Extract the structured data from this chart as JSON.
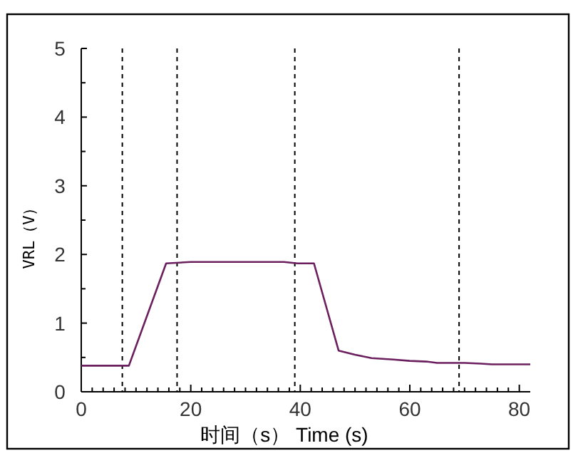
{
  "chart_data": {
    "type": "line",
    "xlabel": "时间（s） Time (s)",
    "ylabel": "VRL（V）",
    "xlim": [
      0,
      82
    ],
    "ylim": [
      0,
      5
    ],
    "xticks": [
      0,
      20,
      40,
      60,
      80
    ],
    "yticks": [
      0,
      1,
      2,
      3,
      4,
      5
    ],
    "grid": false,
    "marker": "none",
    "line_style": "solid",
    "series": [
      {
        "color": "#6b1f5f",
        "x": [
          0,
          8.7,
          15.5,
          20,
          30,
          37,
          39.5,
          42.5,
          47,
          50,
          53,
          57,
          60,
          63,
          65,
          70,
          73,
          75,
          82
        ],
        "values": [
          0.38,
          0.38,
          1.87,
          1.89,
          1.89,
          1.89,
          1.87,
          1.87,
          0.6,
          0.54,
          0.49,
          0.47,
          0.45,
          0.44,
          0.42,
          0.42,
          0.41,
          0.4,
          0.4
        ]
      }
    ],
    "ref_lines": [
      {
        "axis": "x",
        "value": 7.5,
        "color": "#000000",
        "line_style": "dashed"
      },
      {
        "axis": "x",
        "value": 17.5,
        "color": "#000000",
        "line_style": "dashed"
      },
      {
        "axis": "x",
        "value": 39,
        "color": "#000000",
        "line_style": "dashed"
      },
      {
        "axis": "x",
        "value": 69,
        "color": "#000000",
        "line_style": "dashed"
      }
    ]
  }
}
